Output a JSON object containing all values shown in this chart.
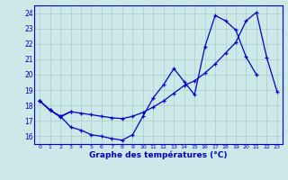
{
  "title": "Graphe des températures (°C)",
  "bg_color": "#cce8e8",
  "line_color": "#0000cc",
  "grid_color": "#aacccc",
  "xlim": [
    -0.5,
    23.5
  ],
  "ylim": [
    15.5,
    24.5
  ],
  "yticks": [
    16,
    17,
    18,
    19,
    20,
    21,
    22,
    23,
    24
  ],
  "xticks": [
    0,
    1,
    2,
    3,
    4,
    5,
    6,
    7,
    8,
    9,
    10,
    11,
    12,
    13,
    14,
    15,
    16,
    17,
    18,
    19,
    20,
    21,
    22,
    23
  ],
  "line1_x": [
    0,
    1,
    2,
    3
  ],
  "line1_y": [
    18.3,
    17.7,
    17.3,
    17.6
  ],
  "line2_x": [
    0,
    1,
    2,
    3,
    4,
    5,
    6,
    7,
    8,
    9,
    10,
    11,
    12,
    13,
    14,
    15,
    16,
    17,
    18,
    19,
    20,
    21
  ],
  "line2_y": [
    18.3,
    17.7,
    17.3,
    16.6,
    16.4,
    16.1,
    16.0,
    15.85,
    15.75,
    16.1,
    17.3,
    18.5,
    19.35,
    20.4,
    19.55,
    18.7,
    21.8,
    23.85,
    23.5,
    22.9,
    21.15,
    20.0
  ],
  "line3_x": [
    0,
    1,
    2,
    3,
    4,
    5,
    6,
    7,
    8,
    9,
    10,
    11,
    12,
    13,
    14,
    15,
    16,
    17,
    18,
    19,
    20,
    21,
    22,
    23
  ],
  "line3_y": [
    18.3,
    17.7,
    17.25,
    17.6,
    17.5,
    17.4,
    17.3,
    17.2,
    17.15,
    17.3,
    17.55,
    17.9,
    18.3,
    18.8,
    19.3,
    19.6,
    20.1,
    20.7,
    21.4,
    22.1,
    23.5,
    24.05,
    21.1,
    18.9
  ]
}
